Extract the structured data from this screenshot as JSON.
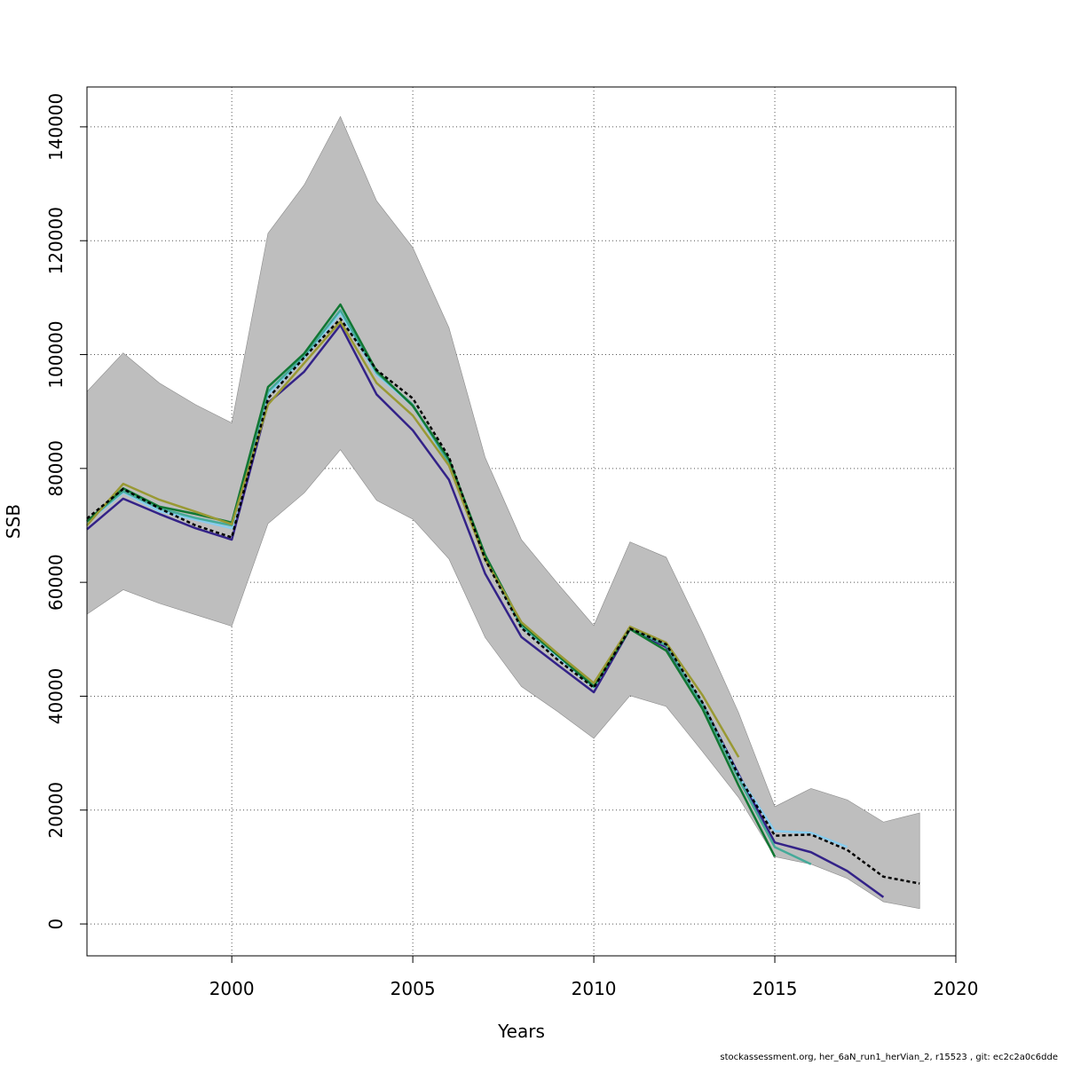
{
  "chart_data": {
    "type": "line",
    "xlabel": "Years",
    "ylabel": "SSB",
    "xlim": [
      1996,
      2020
    ],
    "ylim": [
      -5600,
      147000
    ],
    "x_ticks": [
      2000,
      2005,
      2010,
      2015,
      2020
    ],
    "y_ticks": [
      0,
      20000,
      40000,
      60000,
      80000,
      100000,
      120000,
      140000
    ],
    "grid": true,
    "band": {
      "x": [
        1996,
        1997,
        1998,
        1999,
        2000,
        2001,
        2002,
        2003,
        2004,
        2005,
        2006,
        2007,
        2008,
        2009,
        2010,
        2011,
        2012,
        2013,
        2014,
        2015,
        2016,
        2017,
        2018,
        2019
      ],
      "upper": [
        93500,
        100300,
        95000,
        91200,
        88000,
        121300,
        129800,
        141800,
        127000,
        118800,
        104700,
        81900,
        67500,
        59800,
        52400,
        67100,
        64400,
        51200,
        37100,
        20600,
        23800,
        21800,
        17900,
        19500
      ],
      "lower": [
        54400,
        58700,
        56300,
        54300,
        52300,
        70300,
        75700,
        83300,
        74400,
        71100,
        64100,
        50300,
        41700,
        37300,
        32600,
        40100,
        38200,
        30300,
        22200,
        11800,
        10500,
        8000,
        3900,
        2700
      ],
      "color": "#bebebe"
    },
    "series": [
      {
        "color": "#000000",
        "dashed": true,
        "x": [
          1996,
          1997,
          1998,
          1999,
          2000,
          2001,
          2002,
          2003,
          2004,
          2005,
          2006,
          2007,
          2008,
          2009,
          2010,
          2011,
          2012,
          2013,
          2014,
          2015,
          2016,
          2017,
          2018,
          2019
        ],
        "values": [
          71200,
          76400,
          73000,
          70000,
          67900,
          92300,
          99500,
          106300,
          97300,
          92300,
          82000,
          64000,
          52000,
          46400,
          41500,
          51900,
          49100,
          38900,
          26000,
          15500,
          15700,
          13000,
          8300,
          7100
        ]
      },
      {
        "color": "#332288",
        "dashed": false,
        "x": [
          1996,
          1997,
          1998,
          1999,
          2000,
          2001,
          2002,
          2003,
          2004,
          2005,
          2006,
          2007,
          2008,
          2009,
          2010,
          2011,
          2012,
          2013,
          2014,
          2015,
          2016,
          2017,
          2018
        ],
        "values": [
          69300,
          74700,
          72000,
          69500,
          67500,
          91500,
          97000,
          105200,
          93000,
          86700,
          78000,
          61500,
          50400,
          45500,
          40700,
          51800,
          48600,
          38700,
          26300,
          14300,
          12600,
          9300,
          4700
        ]
      },
      {
        "color": "#88ccee",
        "dashed": false,
        "x": [
          1996,
          1997,
          1998,
          1999,
          2000,
          2001,
          2002,
          2003,
          2004,
          2005,
          2006,
          2007,
          2008,
          2009,
          2010,
          2011,
          2012,
          2013,
          2014,
          2015,
          2016,
          2017
        ],
        "values": [
          70500,
          75800,
          72500,
          71000,
          69500,
          93000,
          99400,
          107300,
          96500,
          91000,
          80800,
          64500,
          52200,
          46900,
          41500,
          52100,
          49000,
          38600,
          26000,
          16300,
          16000,
          13500
        ]
      },
      {
        "color": "#44aa99",
        "dashed": false,
        "x": [
          1996,
          1997,
          1998,
          1999,
          2000,
          2001,
          2002,
          2003,
          2004,
          2005,
          2006,
          2007,
          2008,
          2009,
          2010,
          2011,
          2012,
          2013,
          2014,
          2015,
          2016
        ],
        "values": [
          70700,
          76000,
          73000,
          71300,
          70000,
          93500,
          99800,
          107800,
          96800,
          91200,
          81000,
          64300,
          52300,
          47200,
          41800,
          52000,
          48900,
          38500,
          25500,
          13500,
          10500
        ]
      },
      {
        "color": "#117733",
        "dashed": false,
        "x": [
          1996,
          1997,
          1998,
          1999,
          2000,
          2001,
          2002,
          2003,
          2004,
          2005,
          2006,
          2007,
          2008,
          2009,
          2010,
          2011,
          2012,
          2013,
          2014,
          2015
        ],
        "values": [
          70700,
          76500,
          73300,
          72000,
          70500,
          94300,
          100200,
          108800,
          97100,
          91000,
          81600,
          64800,
          52700,
          47200,
          41700,
          51800,
          48000,
          37800,
          24300,
          11800
        ]
      },
      {
        "color": "#999933",
        "dashed": false,
        "x": [
          1996,
          1997,
          1998,
          1999,
          2000,
          2001,
          2002,
          2003,
          2004,
          2005,
          2006,
          2007,
          2008,
          2009,
          2010,
          2011,
          2012,
          2013,
          2014
        ],
        "values": [
          70000,
          77300,
          74500,
          72400,
          70200,
          91200,
          98500,
          105800,
          95000,
          89300,
          80500,
          64000,
          53000,
          47500,
          42300,
          52200,
          49400,
          40200,
          29300
        ]
      }
    ]
  },
  "footer": "stockassessment.org, her_6aN_run1_herVian_2, r15523 , git: ec2c2a0c6dde"
}
